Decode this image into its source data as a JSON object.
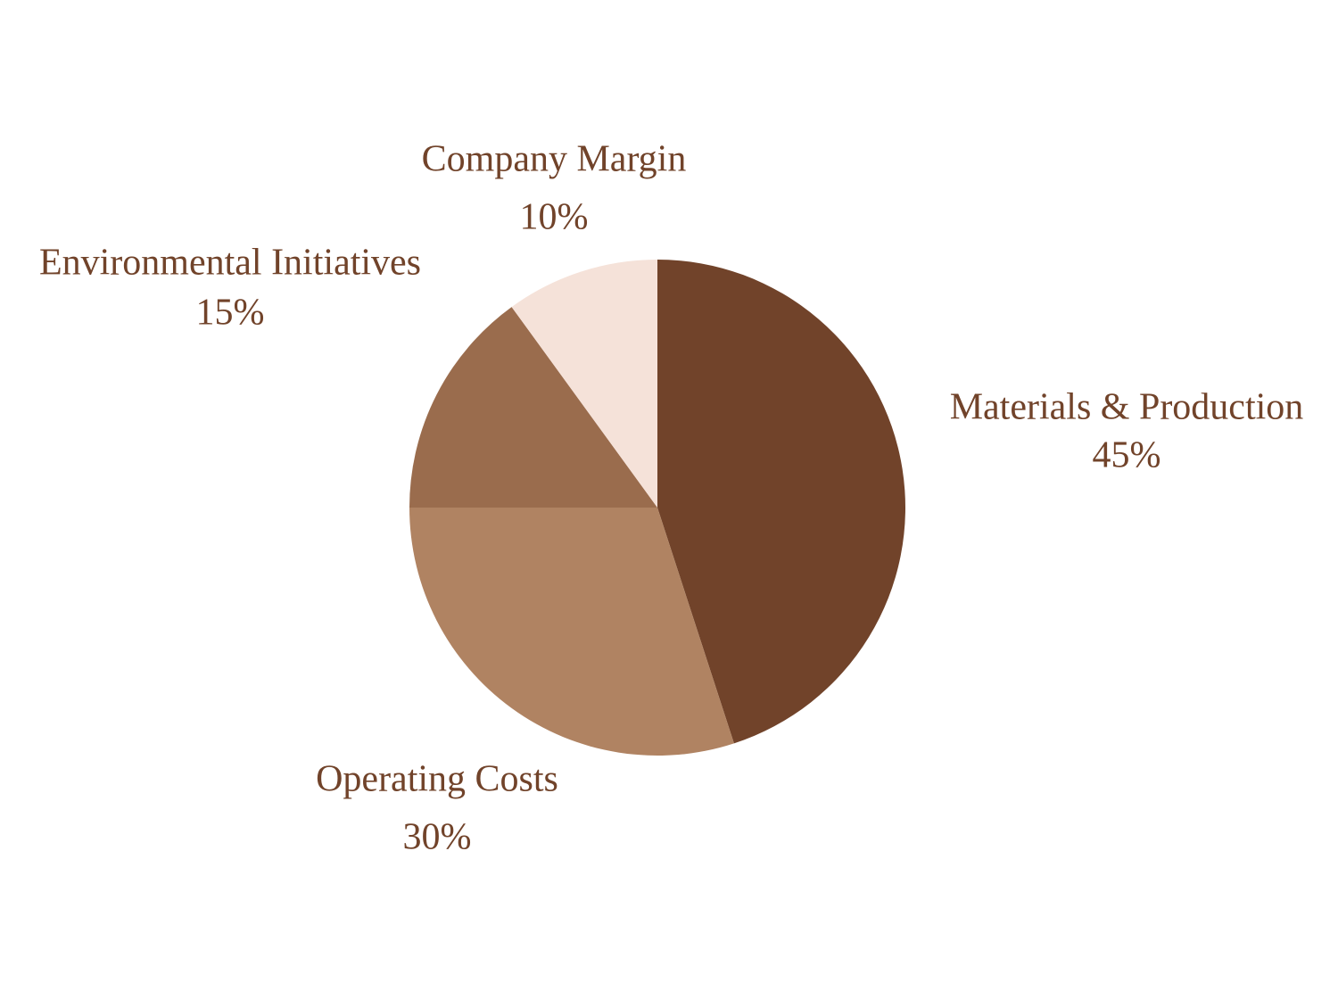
{
  "chart_data": {
    "type": "pie",
    "categories": [
      "Materials & Production",
      "Operating Costs",
      "Environmental Initiatives",
      "Company Margin"
    ],
    "values": [
      45,
      30,
      15,
      10
    ],
    "value_labels": [
      "45%",
      "30%",
      "15%",
      "10%"
    ],
    "colors": [
      "#71432a",
      "#b08362",
      "#9a6c4d",
      "#f5e2d9"
    ]
  }
}
